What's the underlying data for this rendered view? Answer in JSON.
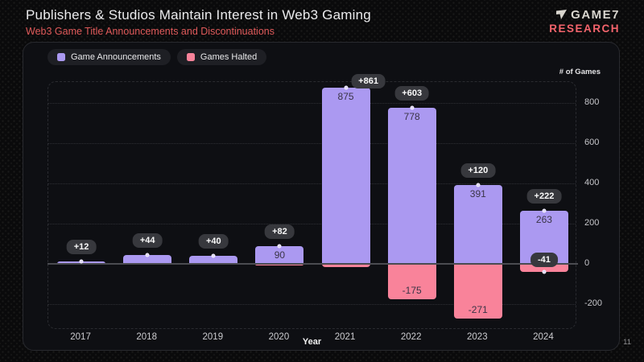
{
  "header": {
    "title": "Publishers & Studios Maintain Interest in Web3 Gaming",
    "subtitle": "Web3 Game Title Announcements and Discontinuations"
  },
  "logo": {
    "brand": "GAME7",
    "division": "RESEARCH"
  },
  "legend": {
    "items": [
      {
        "label": "Game Announcements",
        "color": "#ab99f1"
      },
      {
        "label": "Games Halted",
        "color": "#f9839a"
      }
    ]
  },
  "page_number": "11",
  "colors": {
    "announcements": "#ab99f1",
    "halted": "#f9839a",
    "badge_bg": "#37383d",
    "accent_red": "#e05a5a"
  },
  "chart_data": {
    "type": "bar",
    "stacked": true,
    "title": "Web3 Game Title Announcements and Discontinuations",
    "xlabel": "Year",
    "ylabel": "# of Games",
    "categories": [
      "2017",
      "2018",
      "2019",
      "2020",
      "2021",
      "2022",
      "2023",
      "2024"
    ],
    "series": [
      {
        "name": "Game Announcements",
        "color": "#ab99f1",
        "values": [
          12,
          44,
          40,
          90,
          875,
          778,
          391,
          263
        ]
      },
      {
        "name": "Games Halted",
        "color": "#f9839a",
        "values": [
          0,
          0,
          0,
          -8,
          -14,
          -175,
          -271,
          -41
        ]
      }
    ],
    "net_labels": [
      "+12",
      "+44",
      "+40",
      "+82",
      "+861",
      "+603",
      "+120",
      "+222"
    ],
    "net_label_dx": [
      0,
      0,
      0,
      0,
      28,
      0,
      0,
      0
    ],
    "net_label_dy": [
      0,
      0,
      0,
      0,
      10,
      0,
      0,
      0
    ],
    "bar_value_labels_positive": [
      "",
      "",
      "",
      "90",
      "875",
      "778",
      "391",
      "263"
    ],
    "bar_value_labels_negative": [
      "",
      "",
      "",
      "",
      "",
      "-175",
      "-271",
      ""
    ],
    "negative_badges": [
      "",
      "",
      "",
      "",
      "",
      "",
      "",
      "-41"
    ],
    "yticks": [
      800,
      600,
      400,
      200,
      0,
      -200
    ],
    "ylim": [
      -328,
      916
    ],
    "grid": "dotted-horizontal",
    "legend_position": "top-left",
    "y_axis_side": "right"
  }
}
